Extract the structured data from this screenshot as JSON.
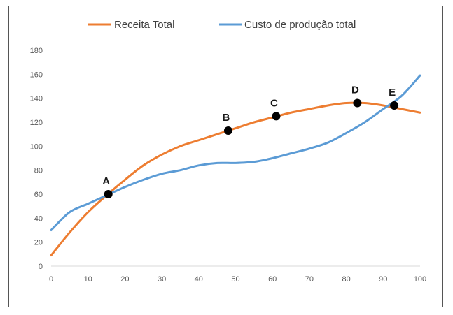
{
  "chart_data": {
    "type": "line",
    "title": "",
    "xlabel": "",
    "ylabel": "",
    "xlim": [
      0,
      100
    ],
    "ylim": [
      0,
      180
    ],
    "xticks": [
      0,
      10,
      20,
      30,
      40,
      50,
      60,
      70,
      80,
      90,
      100
    ],
    "yticks": [
      0,
      20,
      40,
      60,
      80,
      100,
      120,
      140,
      160,
      180
    ],
    "grid": false,
    "legend_position": "top",
    "series": [
      {
        "name": "Receita Total",
        "color": "#ED7D31",
        "x": [
          0,
          5,
          10,
          15,
          20,
          25,
          30,
          35,
          40,
          45,
          50,
          55,
          60,
          65,
          70,
          75,
          80,
          85,
          90,
          95,
          100
        ],
        "y": [
          9,
          28,
          45,
          59,
          72,
          84,
          93,
          100,
          105,
          110,
          115,
          120,
          124,
          128,
          131,
          134,
          136,
          136,
          134,
          131,
          128
        ]
      },
      {
        "name": "Custo de produção total",
        "color": "#5B9BD5",
        "x": [
          0,
          5,
          10,
          15,
          20,
          25,
          30,
          35,
          40,
          45,
          50,
          55,
          60,
          65,
          70,
          75,
          80,
          85,
          90,
          95,
          100
        ],
        "y": [
          30,
          45,
          52,
          59,
          66,
          72,
          77,
          80,
          84,
          86,
          86,
          87,
          90,
          94,
          98,
          103,
          111,
          120,
          131,
          142,
          159
        ]
      }
    ],
    "points": [
      {
        "label": "A",
        "x": 15.5,
        "y": 60
      },
      {
        "label": "B",
        "x": 48,
        "y": 113
      },
      {
        "label": "C",
        "x": 61,
        "y": 125
      },
      {
        "label": "D",
        "x": 83,
        "y": 136
      },
      {
        "label": "E",
        "x": 93,
        "y": 134
      }
    ]
  }
}
